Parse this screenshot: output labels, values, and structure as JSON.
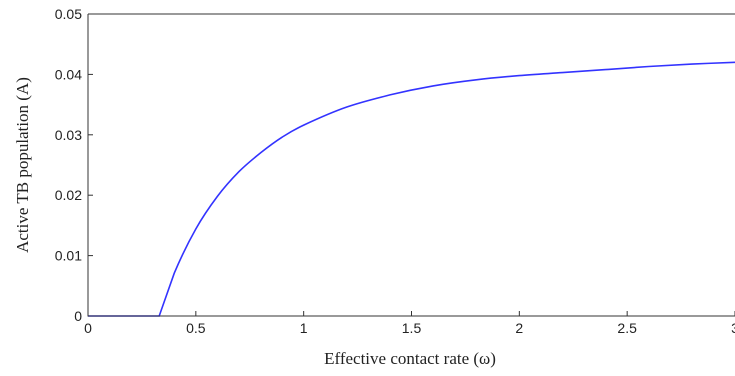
{
  "chart_data": {
    "type": "line",
    "xlabel": "Effective contact rate (ω)",
    "ylabel": "Active TB population (A)",
    "xlim": [
      0,
      3
    ],
    "ylim": [
      0,
      0.05
    ],
    "x_ticks": [
      "0",
      "0.5",
      "1",
      "1.5",
      "2",
      "2.5",
      "3"
    ],
    "y_ticks": [
      "0",
      "0.01",
      "0.02",
      "0.03",
      "0.04",
      "0.05"
    ],
    "grid": false,
    "series": [
      {
        "color": "#3333ff",
        "x": [
          0,
          0.33,
          0.4,
          0.5,
          0.6,
          0.7,
          0.8,
          0.9,
          1.0,
          1.2,
          1.4,
          1.6,
          1.8,
          2.0,
          2.2,
          2.4,
          2.6,
          2.8,
          3.0
        ],
        "y": [
          0,
          0,
          0.0071,
          0.0144,
          0.0198,
          0.0239,
          0.027,
          0.0296,
          0.0316,
          0.0346,
          0.0366,
          0.0381,
          0.0391,
          0.0398,
          0.0403,
          0.0408,
          0.0413,
          0.0417,
          0.042
        ]
      }
    ]
  }
}
